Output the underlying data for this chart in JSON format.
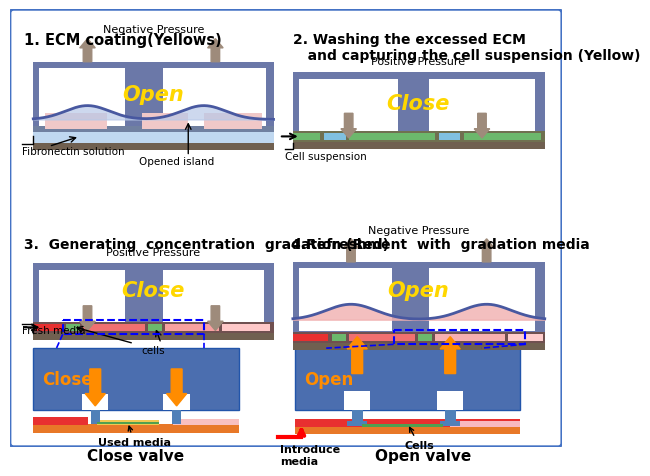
{
  "bg_color": "#ffffff",
  "border_color": "#4472C4",
  "panel_bg": "#6B78A8",
  "panel_bg2": "#4B6EAF",
  "yellow_text": "#FFD700",
  "step1_title": "1. ECM coating(Yellows)",
  "step2_title": "2. Washing the excessed ECM\n   and capturing the cell suspension (Yellow)",
  "step3_title": "3.  Generating  concentration  gradation (Red)",
  "step4_title": "4.Refreshment  with  gradation media",
  "arrow_gray": "#9E8B7B",
  "island_color": "#F0C8C8",
  "cell_green": "#6CB86C",
  "cell_blue": "#80C0E0",
  "cell_red": "#E83030",
  "cell_pink": "#F8B0B8",
  "orange_layer": "#E87828",
  "green_layer": "#50A050",
  "used_media_yellow": "#F0C850",
  "membrane_dark": "#7080A0",
  "channel_brown": "#706050",
  "valve_blue": "#5080B8"
}
